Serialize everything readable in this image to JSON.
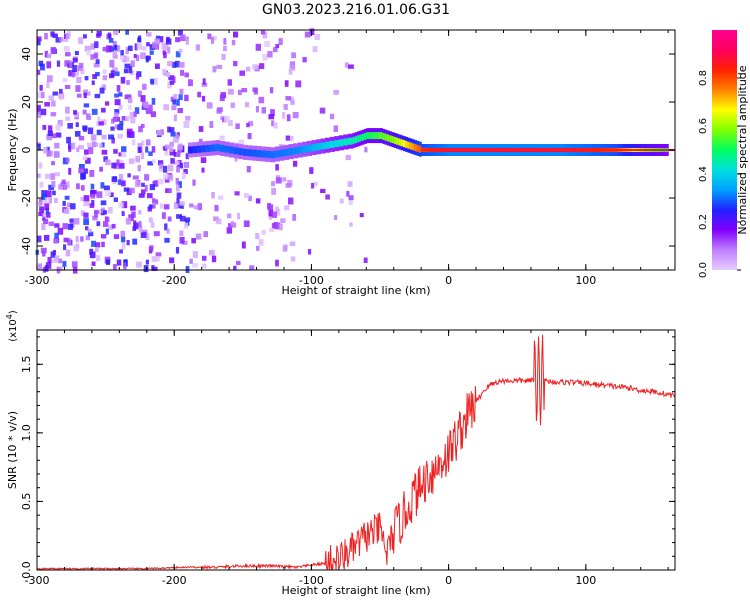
{
  "title": "GN03.2023.216.01.06.G31",
  "chart_data": [
    {
      "type": "heatmap",
      "xlabel": "Height of straight line (km)",
      "ylabel": "Frequency (Hz)",
      "xlim": [
        -300,
        165
      ],
      "ylim": [
        -50,
        50
      ],
      "x_ticks": [
        -300,
        -200,
        -100,
        0,
        100
      ],
      "y_ticks": [
        -40,
        -20,
        0,
        20,
        40
      ],
      "colorbar": {
        "label": "Normalized spectral amplitude",
        "range": [
          0.0,
          1.0
        ],
        "ticks": [
          "0.0",
          "0.2",
          "0.4",
          "0.6",
          "0.8"
        ],
        "colormap": [
          "#e6ccff",
          "#c080ff",
          "#8000ff",
          "#2020ff",
          "#00a0ff",
          "#00e0e0",
          "#00ff60",
          "#80ff00",
          "#ffff00",
          "#ff8000",
          "#ff2000",
          "#ff0060",
          "#ff0090"
        ]
      },
      "ridge_frequency": {
        "x": [
          -190,
          -170,
          -150,
          -130,
          -110,
          -90,
          -70,
          -60,
          -50,
          -40,
          -30,
          -20,
          -10,
          0,
          10,
          20,
          40,
          60,
          80,
          100,
          120,
          140,
          160
        ],
        "y": [
          0,
          1,
          -1,
          -2,
          0,
          2,
          4,
          6,
          6,
          4,
          2,
          0,
          0,
          0,
          0,
          0,
          0,
          0,
          0,
          0,
          0,
          0,
          0
        ],
        "amplitude": [
          0.25,
          0.3,
          0.28,
          0.3,
          0.32,
          0.4,
          0.45,
          0.5,
          0.55,
          0.6,
          0.7,
          0.8,
          0.85,
          0.9,
          0.9,
          0.9,
          0.9,
          0.9,
          0.9,
          0.85,
          0.8,
          0.6,
          0.45
        ]
      }
    },
    {
      "type": "line",
      "xlabel": "Height of straight line (km)",
      "ylabel": "SNR (10 * v/v)",
      "y_multiplier": "(x10^4)",
      "xlim": [
        -300,
        165
      ],
      "ylim": [
        0,
        1.75
      ],
      "x_ticks": [
        -300,
        -200,
        -100,
        0,
        100
      ],
      "y_ticks": [
        "0.0",
        "0.5",
        "1.0",
        "1.5"
      ],
      "series": [
        {
          "color": "#ee2222",
          "x": [
            -300,
            -260,
            -220,
            -190,
            -170,
            -150,
            -130,
            -110,
            -90,
            -80,
            -70,
            -60,
            -50,
            -45,
            -40,
            -35,
            -30,
            -25,
            -20,
            -15,
            -10,
            -5,
            0,
            5,
            10,
            15,
            20,
            25,
            30,
            35,
            40,
            50,
            60,
            65,
            70,
            80,
            90,
            100,
            110,
            120,
            130,
            140,
            150,
            165
          ],
          "y": [
            0.01,
            0.01,
            0.01,
            0.02,
            0.02,
            0.03,
            0.03,
            0.02,
            0.05,
            0.08,
            0.15,
            0.25,
            0.3,
            0.12,
            0.28,
            0.35,
            0.45,
            0.55,
            0.6,
            0.7,
            0.72,
            0.8,
            0.85,
            0.95,
            1.05,
            1.15,
            1.22,
            1.3,
            1.35,
            1.37,
            1.38,
            1.38,
            1.38,
            1.38,
            1.38,
            1.37,
            1.37,
            1.36,
            1.35,
            1.34,
            1.33,
            1.31,
            1.3,
            1.27
          ]
        }
      ]
    }
  ]
}
